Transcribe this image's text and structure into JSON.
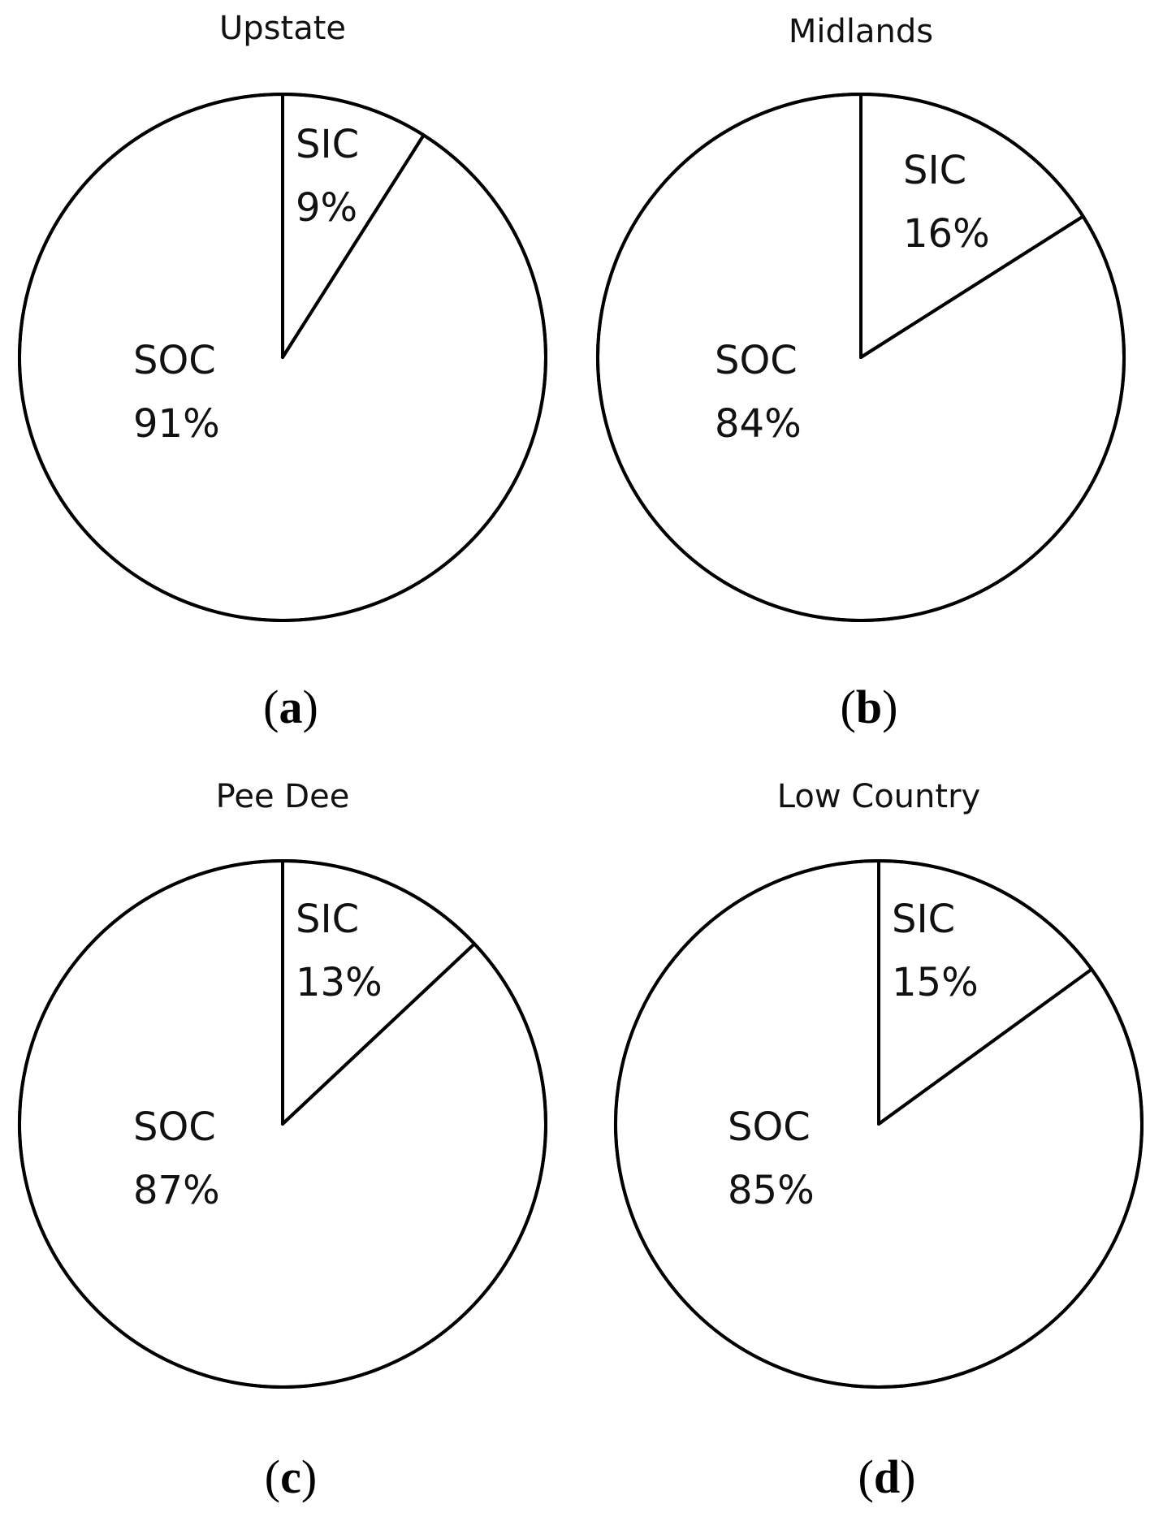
{
  "chart_data": [
    {
      "type": "pie",
      "title": "Upstate",
      "panel_label": "a",
      "slices": [
        {
          "name": "SIC",
          "value": 9,
          "label": "9%"
        },
        {
          "name": "SOC",
          "value": 91,
          "label": "91%"
        }
      ]
    },
    {
      "type": "pie",
      "title": "Midlands",
      "panel_label": "b",
      "slices": [
        {
          "name": "SIC",
          "value": 16,
          "label": "16%"
        },
        {
          "name": "SOC",
          "value": 84,
          "label": "84%"
        }
      ]
    },
    {
      "type": "pie",
      "title": "Pee Dee",
      "panel_label": "c",
      "slices": [
        {
          "name": "SIC",
          "value": 13,
          "label": "13%"
        },
        {
          "name": "SOC",
          "value": 87,
          "label": "87%"
        }
      ]
    },
    {
      "type": "pie",
      "title": "Low Country",
      "panel_label": "d",
      "slices": [
        {
          "name": "SIC",
          "value": 15,
          "label": "15%"
        },
        {
          "name": "SOC",
          "value": 85,
          "label": "85%"
        }
      ]
    }
  ]
}
